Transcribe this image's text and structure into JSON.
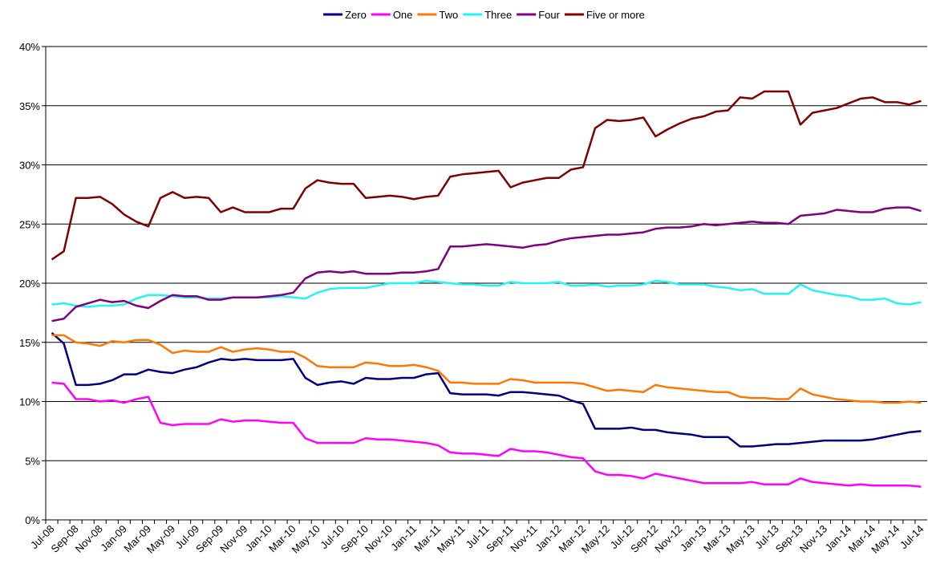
{
  "chart_data": {
    "type": "line",
    "categories": [
      "Jul-08",
      null,
      "Sep-08",
      null,
      "Nov-08",
      null,
      "Jan-09",
      null,
      "Mar-09",
      null,
      "May-09",
      null,
      "Jul-09",
      null,
      "Sep-09",
      null,
      "Nov-09",
      null,
      "Jan-10",
      null,
      "Mar-10",
      null,
      "May-10",
      null,
      "Jul-10",
      null,
      "Sep-10",
      null,
      "Nov-10",
      null,
      "Jan-11",
      null,
      "Mar-11",
      null,
      "May-11",
      null,
      "Jul-11",
      null,
      "Sep-11",
      null,
      "Nov-11",
      null,
      "Jan-12",
      null,
      "Mar-12",
      null,
      "May-12",
      null,
      "Jul-12",
      null,
      "Sep-12",
      null,
      "Nov-12",
      null,
      "Jan-13",
      null,
      "Mar-13",
      null,
      "May-13",
      null,
      "Jul-13",
      null,
      "Sep-13",
      null,
      "Nov-13",
      null,
      "Jan-14",
      null,
      "Mar-14",
      null,
      "May-14",
      null,
      "Jul-14"
    ],
    "series": [
      {
        "name": "Zero",
        "color": "#000080",
        "values": [
          15.8,
          14.9,
          11.4,
          11.4,
          11.5,
          11.8,
          12.3,
          12.3,
          12.7,
          12.5,
          12.4,
          12.7,
          12.9,
          13.3,
          13.6,
          13.5,
          13.6,
          13.5,
          13.5,
          13.5,
          13.6,
          12.0,
          11.4,
          11.6,
          11.7,
          11.5,
          12.0,
          11.9,
          11.9,
          12.0,
          12.0,
          12.3,
          12.4,
          10.7,
          10.6,
          10.6,
          10.6,
          10.5,
          10.8,
          10.8,
          10.7,
          10.6,
          10.5,
          10.1,
          9.8,
          7.7,
          7.7,
          7.7,
          7.8,
          7.6,
          7.6,
          7.4,
          7.3,
          7.2,
          7.0,
          7.0,
          7.0,
          6.2,
          6.2,
          6.3,
          6.4,
          6.4,
          6.5,
          6.6,
          6.7,
          6.7,
          6.7,
          6.7,
          6.8,
          7.0,
          7.2,
          7.4,
          7.5
        ]
      },
      {
        "name": "One",
        "color": "#ff00ff",
        "values": [
          11.6,
          11.5,
          10.2,
          10.2,
          10.0,
          10.1,
          9.9,
          10.2,
          10.4,
          8.2,
          8.0,
          8.1,
          8.1,
          8.1,
          8.5,
          8.3,
          8.4,
          8.4,
          8.3,
          8.2,
          8.2,
          6.9,
          6.5,
          6.5,
          6.5,
          6.5,
          6.9,
          6.8,
          6.8,
          6.7,
          6.6,
          6.5,
          6.3,
          5.7,
          5.6,
          5.6,
          5.5,
          5.4,
          6.0,
          5.8,
          5.8,
          5.7,
          5.5,
          5.3,
          5.2,
          4.1,
          3.8,
          3.8,
          3.7,
          3.5,
          3.9,
          3.7,
          3.5,
          3.3,
          3.1,
          3.1,
          3.1,
          3.1,
          3.2,
          3.0,
          3.0,
          3.0,
          3.5,
          3.2,
          3.1,
          3.0,
          2.9,
          3.0,
          2.9,
          2.9,
          2.9,
          2.9,
          2.8
        ]
      },
      {
        "name": "Two",
        "color": "#ff7700",
        "values": [
          15.6,
          15.6,
          15.0,
          14.9,
          14.7,
          15.1,
          15.0,
          15.2,
          15.2,
          14.8,
          14.1,
          14.3,
          14.2,
          14.2,
          14.6,
          14.2,
          14.4,
          14.5,
          14.4,
          14.2,
          14.2,
          13.7,
          13.0,
          12.9,
          12.9,
          12.9,
          13.3,
          13.2,
          13.0,
          13.0,
          13.1,
          12.9,
          12.6,
          11.6,
          11.6,
          11.5,
          11.5,
          11.5,
          11.9,
          11.8,
          11.6,
          11.6,
          11.6,
          11.6,
          11.5,
          11.2,
          10.9,
          11.0,
          10.9,
          10.8,
          11.4,
          11.2,
          11.1,
          11.0,
          10.9,
          10.8,
          10.8,
          10.4,
          10.3,
          10.3,
          10.2,
          10.2,
          11.1,
          10.6,
          10.4,
          10.2,
          10.1,
          10.0,
          10.0,
          9.9,
          9.9,
          10.0,
          9.9
        ]
      },
      {
        "name": "Three",
        "color": "#22f5f5",
        "values": [
          18.2,
          18.3,
          18.1,
          18.0,
          18.1,
          18.1,
          18.2,
          18.7,
          19.0,
          19.0,
          18.9,
          18.8,
          18.8,
          18.7,
          18.7,
          18.8,
          18.8,
          18.8,
          18.8,
          18.9,
          18.8,
          18.7,
          19.2,
          19.5,
          19.6,
          19.6,
          19.6,
          19.8,
          20.0,
          20.0,
          20.0,
          20.2,
          20.1,
          20.0,
          19.9,
          19.9,
          19.8,
          19.8,
          20.1,
          20.0,
          20.0,
          20.0,
          20.1,
          19.8,
          19.8,
          19.9,
          19.7,
          19.8,
          19.8,
          19.9,
          20.2,
          20.1,
          19.9,
          19.9,
          19.9,
          19.7,
          19.6,
          19.4,
          19.5,
          19.1,
          19.1,
          19.1,
          19.9,
          19.4,
          19.2,
          19.0,
          18.9,
          18.6,
          18.6,
          18.7,
          18.3,
          18.2,
          18.4
        ]
      },
      {
        "name": "Four",
        "color": "#800080",
        "values": [
          16.8,
          17.0,
          18.0,
          18.3,
          18.6,
          18.4,
          18.5,
          18.1,
          17.9,
          18.5,
          19.0,
          18.9,
          18.9,
          18.6,
          18.6,
          18.8,
          18.8,
          18.8,
          18.9,
          19.0,
          19.2,
          20.4,
          20.9,
          21.0,
          20.9,
          21.0,
          20.8,
          20.8,
          20.8,
          20.9,
          20.9,
          21.0,
          21.2,
          23.1,
          23.1,
          23.2,
          23.3,
          23.2,
          23.1,
          23.0,
          23.2,
          23.3,
          23.6,
          23.8,
          23.9,
          24.0,
          24.1,
          24.1,
          24.2,
          24.3,
          24.6,
          24.7,
          24.7,
          24.8,
          25.0,
          24.9,
          25.0,
          25.1,
          25.2,
          25.1,
          25.1,
          25.0,
          25.7,
          25.8,
          25.9,
          26.2,
          26.1,
          26.0,
          26.0,
          26.3,
          26.4,
          26.4,
          26.1
        ]
      },
      {
        "name": "Five or more",
        "color": "#800000",
        "values": [
          22.0,
          22.7,
          27.2,
          27.2,
          27.3,
          26.7,
          25.8,
          25.2,
          24.8,
          27.2,
          27.7,
          27.2,
          27.3,
          27.2,
          26.0,
          26.4,
          26.0,
          26.0,
          26.0,
          26.3,
          26.3,
          28.0,
          28.7,
          28.5,
          28.4,
          28.4,
          27.2,
          27.3,
          27.4,
          27.3,
          27.1,
          27.3,
          27.4,
          29.0,
          29.2,
          29.3,
          29.4,
          29.5,
          28.1,
          28.5,
          28.7,
          28.9,
          28.9,
          29.6,
          29.8,
          33.1,
          33.8,
          33.7,
          33.8,
          34.0,
          32.4,
          33.0,
          33.5,
          33.9,
          34.1,
          34.5,
          34.6,
          35.7,
          35.6,
          36.2,
          36.2,
          36.2,
          33.4,
          34.4,
          34.6,
          34.8,
          35.2,
          35.6,
          35.7,
          35.3,
          35.3,
          35.1,
          35.4
        ]
      }
    ],
    "ylim": [
      0,
      40
    ],
    "yticks": [
      {
        "value": 0,
        "label": "0%"
      },
      {
        "value": 5,
        "label": "5%"
      },
      {
        "value": 10,
        "label": "10%"
      },
      {
        "value": 15,
        "label": "15%"
      },
      {
        "value": 20,
        "label": "20%"
      },
      {
        "value": 25,
        "label": "25%"
      },
      {
        "value": 30,
        "label": "30%"
      },
      {
        "value": 35,
        "label": "35%"
      },
      {
        "value": 40,
        "label": "40%"
      }
    ],
    "grid": true,
    "legend": "top"
  }
}
